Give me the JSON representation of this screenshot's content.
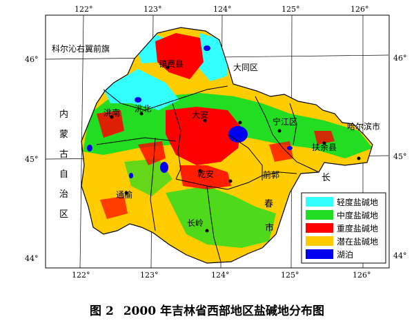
{
  "caption": {
    "figure_no": "图 2",
    "text": "2000 年吉林省西部地区盐碱地分布图"
  },
  "lon_labels_top": [
    "122°",
    "123°",
    "124°",
    "125°",
    "126°"
  ],
  "lon_labels_bottom": [
    "122°",
    "123°",
    "124°",
    "125°",
    "126°"
  ],
  "lat_labels_left": [
    "46°",
    "45°",
    "44°"
  ],
  "lat_labels_right": [
    "46°",
    "45°",
    "44°"
  ],
  "places": {
    "keerqin": "科尔沁右翼前旗",
    "zhenlai": "镇赉县",
    "datong": "大同区",
    "taonan": "洮南",
    "taobei": "洮北",
    "daan": "大安",
    "qianjiang": "宁江区",
    "harbin": "哈尔滨市",
    "fuyu": "扶余县",
    "qianan": "乾安",
    "qianguo": "前郭",
    "tongyu": "通榆",
    "changling": "长岭",
    "neimenggu": [
      "内",
      "蒙",
      "古",
      "自",
      "治",
      "区"
    ],
    "changchun": [
      "长",
      "春",
      "市"
    ]
  },
  "legend": [
    {
      "label": "轻度盐碱地",
      "color": "#33ffff"
    },
    {
      "label": "中度盐碱地",
      "color": "#22dd22"
    },
    {
      "label": "重度盐碱地",
      "color": "#ff0000"
    },
    {
      "label": "潜在盐碱地",
      "color": "#ffcc00"
    },
    {
      "label": "湖泊",
      "color": "#0000ee"
    }
  ]
}
